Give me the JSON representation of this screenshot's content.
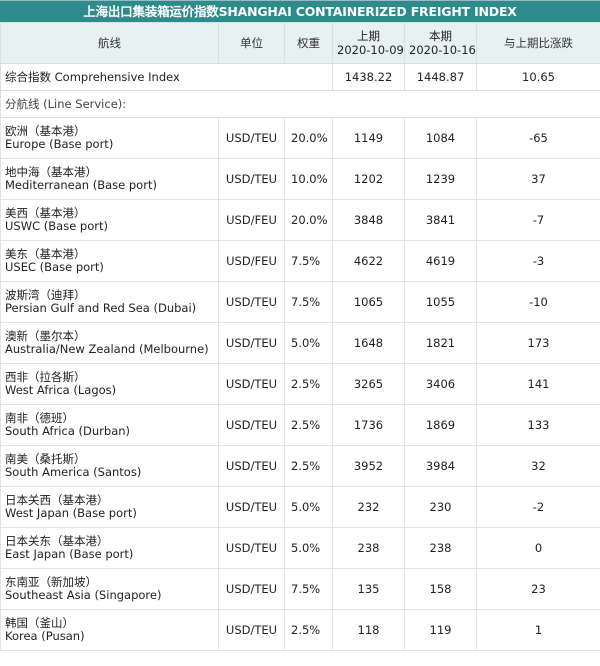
{
  "title": "上海出口集装箱运价指数SHANGHAI CONTAINERIZED FREIGHT INDEX",
  "header": {
    "line": "航线",
    "unit": "单位",
    "weight": "权重",
    "prev_label": "上期",
    "prev_date": "2020-10-09",
    "cur_label": "本期",
    "cur_date": "2020-10-16",
    "change": "与上期比涨跌"
  },
  "composite": {
    "label": "综合指数 Comprehensive Index",
    "prev": "1438.22",
    "cur": "1448.87",
    "change": "10.65"
  },
  "subheading": "分航线 (Line Service):",
  "rows": [
    {
      "cn": "欧洲（基本港）",
      "en": "Europe (Base port)",
      "unit": "USD/TEU",
      "weight": "20.0%",
      "prev": "1149",
      "cur": "1084",
      "change": "-65"
    },
    {
      "cn": "地中海（基本港）",
      "en": "Mediterranean (Base port)",
      "unit": "USD/TEU",
      "weight": "10.0%",
      "prev": "1202",
      "cur": "1239",
      "change": "37"
    },
    {
      "cn": "美西（基本港）",
      "en": "USWC (Base port)",
      "unit": "USD/FEU",
      "weight": "20.0%",
      "prev": "3848",
      "cur": "3841",
      "change": "-7"
    },
    {
      "cn": "美东（基本港）",
      "en": "USEC (Base port)",
      "unit": "USD/FEU",
      "weight": "7.5%",
      "prev": "4622",
      "cur": "4619",
      "change": "-3"
    },
    {
      "cn": "波斯湾（迪拜）",
      "en": "Persian Gulf and Red Sea (Dubai)",
      "unit": "USD/TEU",
      "weight": "7.5%",
      "prev": "1065",
      "cur": "1055",
      "change": "-10"
    },
    {
      "cn": "澳新（墨尔本）",
      "en": "Australia/New Zealand (Melbourne)",
      "unit": "USD/TEU",
      "weight": "5.0%",
      "prev": "1648",
      "cur": "1821",
      "change": "173"
    },
    {
      "cn": "西非（拉各斯）",
      "en": "West Africa (Lagos)",
      "unit": "USD/TEU",
      "weight": "2.5%",
      "prev": "3265",
      "cur": "3406",
      "change": "141"
    },
    {
      "cn": "南非（德班）",
      "en": "South Africa (Durban)",
      "unit": "USD/TEU",
      "weight": "2.5%",
      "prev": "1736",
      "cur": "1869",
      "change": "133"
    },
    {
      "cn": "南美（桑托斯）",
      "en": "South America (Santos)",
      "unit": "USD/TEU",
      "weight": "2.5%",
      "prev": "3952",
      "cur": "3984",
      "change": "32"
    },
    {
      "cn": "日本关西（基本港）",
      "en": "West Japan (Base port)",
      "unit": "USD/TEU",
      "weight": "5.0%",
      "prev": "232",
      "cur": "230",
      "change": "-2"
    },
    {
      "cn": "日本关东（基本港）",
      "en": "East Japan (Base port)",
      "unit": "USD/TEU",
      "weight": "5.0%",
      "prev": "238",
      "cur": "238",
      "change": "0"
    },
    {
      "cn": "东南亚（新加坡）",
      "en": "Southeast Asia (Singapore)",
      "unit": "USD/TEU",
      "weight": "7.5%",
      "prev": "135",
      "cur": "158",
      "change": "23"
    },
    {
      "cn": "韩国（釜山）",
      "en": "Korea (Pusan)",
      "unit": "USD/TEU",
      "weight": "2.5%",
      "prev": "118",
      "cur": "119",
      "change": "1"
    }
  ]
}
